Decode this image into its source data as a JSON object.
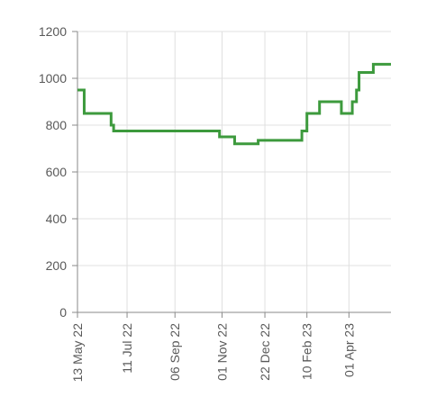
{
  "chart_data": {
    "type": "line",
    "title": "",
    "xlabel": "",
    "ylabel": "",
    "ylim": [
      0,
      1200
    ],
    "xlim": [
      "2022-05-13",
      "2023-05-21"
    ],
    "y_ticks": [
      0,
      200,
      400,
      600,
      800,
      1000,
      1200
    ],
    "x_ticks": [
      {
        "date": "2022-05-13",
        "label": "13 May 22"
      },
      {
        "date": "2022-07-11",
        "label": "11 Jul 22"
      },
      {
        "date": "2022-09-06",
        "label": "06 Sep 22"
      },
      {
        "date": "2022-11-01",
        "label": "01 Nov 22"
      },
      {
        "date": "2022-12-22",
        "label": "22 Dec 22"
      },
      {
        "date": "2023-02-10",
        "label": "10 Feb 23"
      },
      {
        "date": "2023-04-01",
        "label": "01 Apr 23"
      }
    ],
    "grid": true,
    "legend": "none",
    "step": true,
    "series": [
      {
        "color": "#3d9a3d",
        "points": [
          {
            "x": "2022-05-13",
            "y": 950
          },
          {
            "x": "2022-05-21",
            "y": 850
          },
          {
            "x": "2022-06-22",
            "y": 800
          },
          {
            "x": "2022-06-25",
            "y": 775
          },
          {
            "x": "2022-10-29",
            "y": 750
          },
          {
            "x": "2022-11-16",
            "y": 720
          },
          {
            "x": "2022-12-14",
            "y": 735
          },
          {
            "x": "2023-02-04",
            "y": 775
          },
          {
            "x": "2023-02-10",
            "y": 850
          },
          {
            "x": "2023-02-25",
            "y": 900
          },
          {
            "x": "2023-03-23",
            "y": 850
          },
          {
            "x": "2023-04-05",
            "y": 900
          },
          {
            "x": "2023-04-10",
            "y": 950
          },
          {
            "x": "2023-04-13",
            "y": 1025
          },
          {
            "x": "2023-04-30",
            "y": 1060
          },
          {
            "x": "2023-05-21",
            "y": 1060
          }
        ]
      }
    ]
  }
}
